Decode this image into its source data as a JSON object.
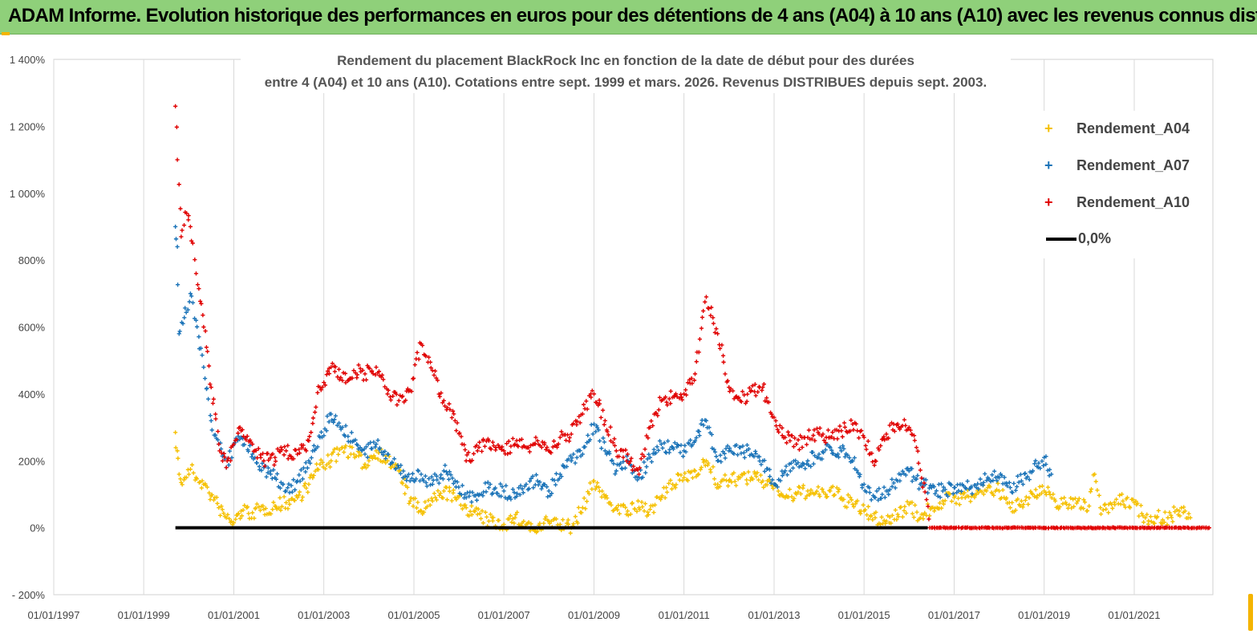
{
  "header": {
    "title": "ADAM Informe. Evolution historique des performances en euros pour des détentions de 4 ans (A04) à 10 ans (A10) avec les revenus connus distribués"
  },
  "chart_data": {
    "type": "scatter",
    "title_lines": [
      "Rendement du placement BlackRock Inc en fonction de la date de début pour des durées",
      "entre 4 (A04) et 10 ans (A10). Cotations entre sept. 1999 et mars. 2026. Revenus DISTRIBUES depuis sept. 2003."
    ],
    "xlabel": "",
    "ylabel": "",
    "x_ticks": [
      "01/01/1997",
      "01/01/1999",
      "01/01/2001",
      "01/01/2003",
      "01/01/2005",
      "01/01/2007",
      "01/01/2009",
      "01/01/2011",
      "01/01/2013",
      "01/01/2015",
      "01/01/2017",
      "01/01/2019",
      "01/01/2021"
    ],
    "y_ticks": [
      "- 200%",
      "0%",
      "200%",
      "400%",
      "600%",
      "800%",
      "1 000%",
      "1 200%",
      "1 400%"
    ],
    "x_range": [
      "1997-01-01",
      "2022-10-01"
    ],
    "ylim": [
      -200,
      1400
    ],
    "grid": "vertical",
    "legend_position": "top-right",
    "series": [
      {
        "name": "Rendement_A04",
        "color": "#f5c000",
        "marker": "plus",
        "points": [
          [
            "1999-09-15",
            285
          ],
          [
            "1999-10-01",
            230
          ],
          [
            "1999-10-15",
            160
          ],
          [
            "1999-11-01",
            135
          ],
          [
            "1999-12-01",
            150
          ],
          [
            "2000-01-15",
            175
          ],
          [
            "2000-03-01",
            150
          ],
          [
            "2000-05-01",
            130
          ],
          [
            "2000-07-01",
            95
          ],
          [
            "2000-09-01",
            60
          ],
          [
            "2000-11-01",
            30
          ],
          [
            "2001-01-01",
            15
          ],
          [
            "2001-03-01",
            50
          ],
          [
            "2001-06-01",
            45
          ],
          [
            "2001-09-01",
            55
          ],
          [
            "2001-12-01",
            65
          ],
          [
            "2002-03-01",
            75
          ],
          [
            "2002-06-01",
            90
          ],
          [
            "2002-09-01",
            130
          ],
          [
            "2002-12-01",
            190
          ],
          [
            "2003-03-01",
            200
          ],
          [
            "2003-06-01",
            240
          ],
          [
            "2003-09-01",
            220
          ],
          [
            "2003-12-01",
            190
          ],
          [
            "2004-03-01",
            230
          ],
          [
            "2004-06-01",
            200
          ],
          [
            "2004-09-01",
            170
          ],
          [
            "2004-12-01",
            80
          ],
          [
            "2005-03-01",
            50
          ],
          [
            "2005-06-01",
            80
          ],
          [
            "2005-09-01",
            110
          ],
          [
            "2005-12-01",
            90
          ],
          [
            "2006-03-01",
            60
          ],
          [
            "2006-06-01",
            40
          ],
          [
            "2006-09-01",
            20
          ],
          [
            "2007-01-01",
            10
          ],
          [
            "2007-04-01",
            30
          ],
          [
            "2007-07-01",
            10
          ],
          [
            "2007-10-01",
            -10
          ],
          [
            "2008-01-01",
            20
          ],
          [
            "2008-04-01",
            10
          ],
          [
            "2008-07-01",
            0
          ],
          [
            "2008-10-01",
            60
          ],
          [
            "2009-01-01",
            140
          ],
          [
            "2009-04-01",
            90
          ],
          [
            "2009-07-01",
            60
          ],
          [
            "2009-10-01",
            50
          ],
          [
            "2010-01-01",
            60
          ],
          [
            "2010-04-01",
            55
          ],
          [
            "2010-07-01",
            90
          ],
          [
            "2010-10-01",
            130
          ],
          [
            "2011-01-01",
            150
          ],
          [
            "2011-04-01",
            170
          ],
          [
            "2011-07-01",
            200
          ],
          [
            "2011-10-01",
            130
          ],
          [
            "2012-01-01",
            140
          ],
          [
            "2012-04-01",
            150
          ],
          [
            "2012-07-01",
            150
          ],
          [
            "2012-10-01",
            140
          ],
          [
            "2013-01-01",
            130
          ],
          [
            "2013-04-01",
            90
          ],
          [
            "2013-07-01",
            100
          ],
          [
            "2013-10-01",
            110
          ],
          [
            "2014-01-01",
            100
          ],
          [
            "2014-04-01",
            110
          ],
          [
            "2014-07-01",
            90
          ],
          [
            "2014-10-01",
            70
          ],
          [
            "2015-01-01",
            50
          ],
          [
            "2015-04-01",
            30
          ],
          [
            "2015-07-01",
            20
          ],
          [
            "2015-10-01",
            40
          ],
          [
            "2016-01-01",
            70
          ],
          [
            "2016-04-01",
            30
          ],
          [
            "2016-07-01",
            60
          ],
          [
            "2016-10-01",
            80
          ],
          [
            "2017-01-01",
            90
          ],
          [
            "2017-04-01",
            90
          ],
          [
            "2017-07-01",
            100
          ],
          [
            "2017-10-01",
            120
          ],
          [
            "2018-01-01",
            110
          ],
          [
            "2018-04-01",
            60
          ],
          [
            "2018-07-01",
            80
          ],
          [
            "2018-10-01",
            100
          ],
          [
            "2019-01-01",
            110
          ],
          [
            "2019-04-01",
            80
          ],
          [
            "2019-07-01",
            70
          ],
          [
            "2019-10-01",
            80
          ],
          [
            "2020-01-01",
            65
          ],
          [
            "2020-02-15",
            160
          ],
          [
            "2020-04-01",
            60
          ],
          [
            "2020-07-01",
            70
          ],
          [
            "2020-10-01",
            80
          ],
          [
            "2021-01-01",
            75
          ],
          [
            "2021-04-01",
            30
          ],
          [
            "2021-07-01",
            30
          ],
          [
            "2021-10-01",
            30
          ],
          [
            "2022-01-01",
            50
          ],
          [
            "2022-04-01",
            30
          ]
        ]
      },
      {
        "name": "Rendement_A07",
        "color": "#1a73b8",
        "marker": "plus",
        "points": [
          [
            "1999-09-15",
            900
          ],
          [
            "1999-10-01",
            840
          ],
          [
            "1999-10-15",
            580
          ],
          [
            "1999-11-15",
            610
          ],
          [
            "2000-01-15",
            700
          ],
          [
            "2000-03-01",
            620
          ],
          [
            "2000-05-01",
            480
          ],
          [
            "2000-07-01",
            320
          ],
          [
            "2000-09-01",
            250
          ],
          [
            "2000-11-01",
            180
          ],
          [
            "2001-01-01",
            250
          ],
          [
            "2001-03-01",
            270
          ],
          [
            "2001-06-01",
            220
          ],
          [
            "2001-09-01",
            180
          ],
          [
            "2001-12-01",
            150
          ],
          [
            "2002-03-01",
            110
          ],
          [
            "2002-06-01",
            140
          ],
          [
            "2002-09-01",
            200
          ],
          [
            "2002-12-01",
            270
          ],
          [
            "2003-03-01",
            340
          ],
          [
            "2003-06-01",
            300
          ],
          [
            "2003-09-01",
            260
          ],
          [
            "2003-12-01",
            220
          ],
          [
            "2004-03-01",
            250
          ],
          [
            "2004-06-01",
            220
          ],
          [
            "2004-09-01",
            180
          ],
          [
            "2004-12-01",
            140
          ],
          [
            "2005-03-01",
            160
          ],
          [
            "2005-06-01",
            130
          ],
          [
            "2005-09-01",
            170
          ],
          [
            "2005-12-01",
            140
          ],
          [
            "2006-03-01",
            90
          ],
          [
            "2006-06-01",
            100
          ],
          [
            "2006-09-01",
            120
          ],
          [
            "2007-01-01",
            110
          ],
          [
            "2007-04-01",
            90
          ],
          [
            "2007-07-01",
            130
          ],
          [
            "2007-10-01",
            140
          ],
          [
            "2008-01-01",
            110
          ],
          [
            "2008-04-01",
            160
          ],
          [
            "2008-07-01",
            200
          ],
          [
            "2008-10-01",
            220
          ],
          [
            "2009-01-01",
            310
          ],
          [
            "2009-04-01",
            230
          ],
          [
            "2009-07-01",
            170
          ],
          [
            "2009-10-01",
            200
          ],
          [
            "2010-01-01",
            150
          ],
          [
            "2010-04-01",
            210
          ],
          [
            "2010-07-01",
            250
          ],
          [
            "2010-10-01",
            240
          ],
          [
            "2011-01-01",
            230
          ],
          [
            "2011-04-01",
            260
          ],
          [
            "2011-07-01",
            320
          ],
          [
            "2011-10-01",
            200
          ],
          [
            "2012-01-01",
            230
          ],
          [
            "2012-04-01",
            240
          ],
          [
            "2012-07-01",
            220
          ],
          [
            "2012-10-01",
            200
          ],
          [
            "2013-01-01",
            130
          ],
          [
            "2013-04-01",
            170
          ],
          [
            "2013-07-01",
            190
          ],
          [
            "2013-10-01",
            200
          ],
          [
            "2014-01-01",
            220
          ],
          [
            "2014-04-01",
            240
          ],
          [
            "2014-07-01",
            230
          ],
          [
            "2014-10-01",
            200
          ],
          [
            "2015-01-01",
            130
          ],
          [
            "2015-04-01",
            90
          ],
          [
            "2015-07-01",
            110
          ],
          [
            "2015-10-01",
            140
          ],
          [
            "2016-01-01",
            170
          ],
          [
            "2016-04-01",
            130
          ],
          [
            "2016-07-01",
            120
          ],
          [
            "2016-10-01",
            110
          ],
          [
            "2017-01-01",
            120
          ],
          [
            "2017-04-01",
            120
          ],
          [
            "2017-07-01",
            120
          ],
          [
            "2017-10-01",
            150
          ],
          [
            "2018-01-01",
            150
          ],
          [
            "2018-04-01",
            120
          ],
          [
            "2018-07-01",
            140
          ],
          [
            "2018-10-01",
            170
          ],
          [
            "2019-01-01",
            210
          ],
          [
            "2019-03-01",
            160
          ]
        ]
      },
      {
        "name": "Rendement_A10",
        "color": "#e00000",
        "marker": "plus",
        "points": [
          [
            "1999-09-15",
            1260
          ],
          [
            "1999-10-01",
            1100
          ],
          [
            "1999-11-01",
            870
          ],
          [
            "1999-12-15",
            940
          ],
          [
            "2000-01-15",
            900
          ],
          [
            "2000-03-01",
            760
          ],
          [
            "2000-05-01",
            600
          ],
          [
            "2000-07-01",
            420
          ],
          [
            "2000-09-01",
            250
          ],
          [
            "2000-11-01",
            180
          ],
          [
            "2001-01-01",
            250
          ],
          [
            "2001-03-01",
            290
          ],
          [
            "2001-06-01",
            250
          ],
          [
            "2001-09-01",
            200
          ],
          [
            "2001-12-01",
            210
          ],
          [
            "2002-03-01",
            230
          ],
          [
            "2002-06-01",
            220
          ],
          [
            "2002-09-01",
            260
          ],
          [
            "2002-12-01",
            420
          ],
          [
            "2003-03-01",
            480
          ],
          [
            "2003-06-01",
            440
          ],
          [
            "2003-09-01",
            470
          ],
          [
            "2003-12-01",
            460
          ],
          [
            "2004-03-01",
            480
          ],
          [
            "2004-06-01",
            400
          ],
          [
            "2004-09-01",
            380
          ],
          [
            "2004-12-01",
            410
          ],
          [
            "2005-03-01",
            550
          ],
          [
            "2005-06-01",
            470
          ],
          [
            "2005-09-01",
            380
          ],
          [
            "2005-12-01",
            320
          ],
          [
            "2006-03-01",
            200
          ],
          [
            "2006-06-01",
            230
          ],
          [
            "2006-09-01",
            260
          ],
          [
            "2007-01-01",
            230
          ],
          [
            "2007-04-01",
            250
          ],
          [
            "2007-07-01",
            240
          ],
          [
            "2007-10-01",
            260
          ],
          [
            "2008-01-01",
            230
          ],
          [
            "2008-04-01",
            270
          ],
          [
            "2008-07-01",
            280
          ],
          [
            "2008-10-01",
            340
          ],
          [
            "2009-01-01",
            400
          ],
          [
            "2009-04-01",
            320
          ],
          [
            "2009-07-01",
            230
          ],
          [
            "2009-10-01",
            220
          ],
          [
            "2010-01-01",
            160
          ],
          [
            "2010-04-01",
            300
          ],
          [
            "2010-07-01",
            380
          ],
          [
            "2010-10-01",
            390
          ],
          [
            "2011-01-01",
            400
          ],
          [
            "2011-04-01",
            460
          ],
          [
            "2011-07-01",
            690
          ],
          [
            "2011-10-01",
            580
          ],
          [
            "2012-01-01",
            420
          ],
          [
            "2012-04-01",
            380
          ],
          [
            "2012-07-01",
            410
          ],
          [
            "2012-10-01",
            420
          ],
          [
            "2013-01-01",
            330
          ],
          [
            "2013-04-01",
            270
          ],
          [
            "2013-07-01",
            250
          ],
          [
            "2013-10-01",
            270
          ],
          [
            "2014-01-01",
            280
          ],
          [
            "2014-04-01",
            270
          ],
          [
            "2014-07-01",
            290
          ],
          [
            "2014-10-01",
            310
          ],
          [
            "2015-01-01",
            270
          ],
          [
            "2015-04-01",
            200
          ],
          [
            "2015-07-01",
            280
          ],
          [
            "2015-10-01",
            310
          ],
          [
            "2016-01-01",
            300
          ],
          [
            "2016-03-01",
            240
          ],
          [
            "2016-07-01",
            0
          ],
          [
            "2017-01-01",
            0
          ],
          [
            "2018-01-01",
            0
          ],
          [
            "2019-01-01",
            0
          ],
          [
            "2020-01-01",
            0
          ],
          [
            "2021-01-01",
            0
          ],
          [
            "2022-01-01",
            0
          ],
          [
            "2022-09-01",
            0
          ]
        ]
      },
      {
        "name": "0,0%",
        "color": "#000000",
        "marker": "line",
        "points": [
          [
            "1999-09-15",
            0
          ],
          [
            "2016-06-01",
            0
          ]
        ]
      }
    ]
  }
}
